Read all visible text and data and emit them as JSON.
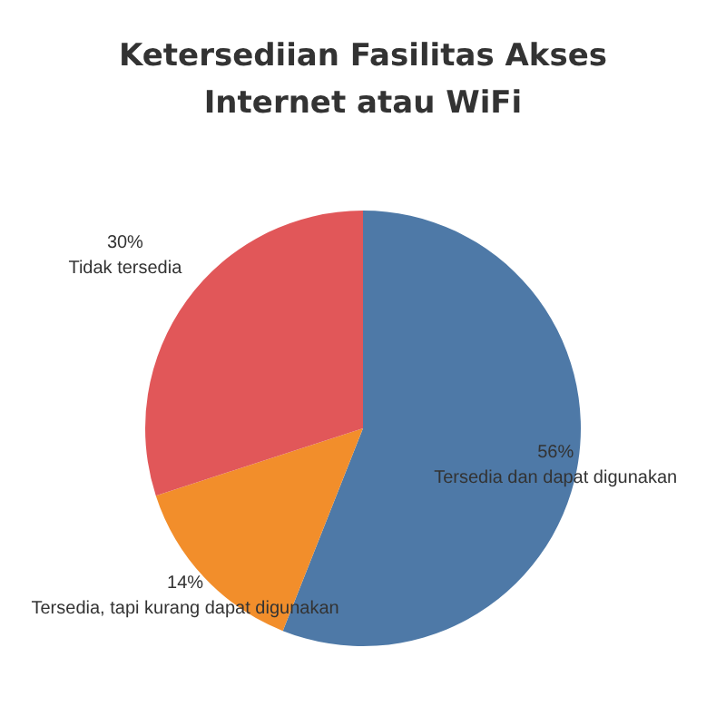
{
  "chart_data": {
    "type": "pie",
    "title": "Ketersediian Fasilitas Akses Internet atau WiFi",
    "categories": [
      "Tersedia dan dapat digunakan",
      "Tersedia, tapi kurang dapat digunakan",
      "Tidak tersedia"
    ],
    "values": [
      56,
      14,
      30
    ],
    "colors": [
      "#4e79a7",
      "#f28e2b",
      "#e15759"
    ],
    "value_labels": [
      "56%",
      "14%",
      "30%"
    ],
    "legend": false
  }
}
